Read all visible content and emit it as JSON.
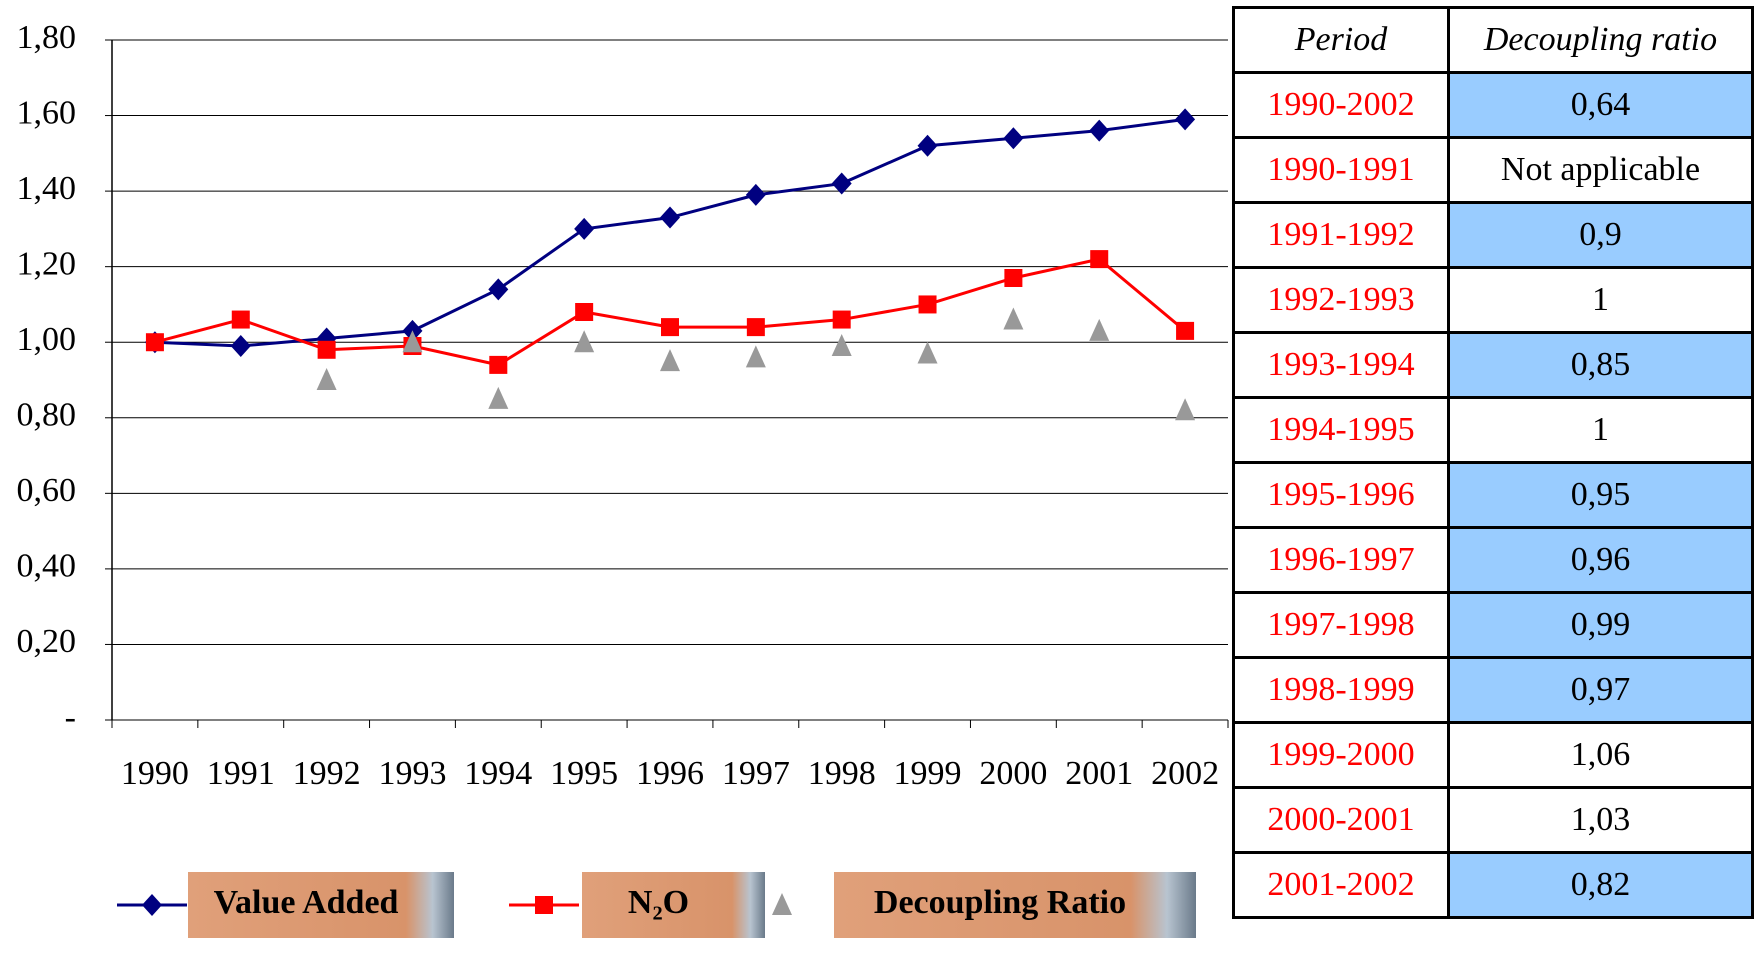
{
  "chart_data": {
    "type": "line",
    "categories": [
      "1990",
      "1991",
      "1992",
      "1993",
      "1994",
      "1995",
      "1996",
      "1997",
      "1998",
      "1999",
      "2000",
      "2001",
      "2002"
    ],
    "series": [
      {
        "name": "Value Added",
        "color": "#000080",
        "marker": "diamond",
        "values": [
          1.0,
          0.99,
          1.01,
          1.03,
          1.14,
          1.3,
          1.33,
          1.39,
          1.42,
          1.52,
          1.54,
          1.56,
          1.59
        ]
      },
      {
        "name": "N₂O",
        "color": "#ff0000",
        "marker": "square",
        "values": [
          1.0,
          1.06,
          0.98,
          0.99,
          0.94,
          1.08,
          1.04,
          1.04,
          1.06,
          1.1,
          1.17,
          1.22,
          1.03
        ]
      },
      {
        "name": "Decoupling Ratio",
        "color": "#999999",
        "marker": "triangle",
        "line": false,
        "values": [
          null,
          null,
          0.9,
          1.0,
          0.85,
          1.0,
          0.95,
          0.96,
          0.99,
          0.97,
          1.06,
          1.03,
          0.82
        ]
      }
    ],
    "ylim": [
      0,
      1.8
    ],
    "yticks": [
      {
        "value": 0,
        "label": "-"
      },
      {
        "value": 0.2,
        "label": "0,20"
      },
      {
        "value": 0.4,
        "label": "0,40"
      },
      {
        "value": 0.6,
        "label": "0,60"
      },
      {
        "value": 0.8,
        "label": "0,80"
      },
      {
        "value": 1.0,
        "label": "1,00"
      },
      {
        "value": 1.2,
        "label": "1,20"
      },
      {
        "value": 1.4,
        "label": "1,40"
      },
      {
        "value": 1.6,
        "label": "1,60"
      },
      {
        "value": 1.8,
        "label": "1,80"
      }
    ],
    "grid": true,
    "legend": "bottom"
  },
  "table": {
    "header": [
      "Period",
      "Decoupling ratio"
    ],
    "highlight_color": "#99ccff",
    "rows": [
      {
        "period": "1990-2002",
        "ratio": "0,64",
        "highlight": true
      },
      {
        "period": "1990-1991",
        "ratio": "Not applicable",
        "highlight": false
      },
      {
        "period": "1991-1992",
        "ratio": "0,9",
        "highlight": true
      },
      {
        "period": "1992-1993",
        "ratio": "1",
        "highlight": false
      },
      {
        "period": "1993-1994",
        "ratio": "0,85",
        "highlight": true
      },
      {
        "period": "1994-1995",
        "ratio": "1",
        "highlight": false
      },
      {
        "period": "1995-1996",
        "ratio": "0,95",
        "highlight": true
      },
      {
        "period": "1996-1997",
        "ratio": "0,96",
        "highlight": true
      },
      {
        "period": "1997-1998",
        "ratio": "0,99",
        "highlight": true
      },
      {
        "period": "1998-1999",
        "ratio": "0,97",
        "highlight": true
      },
      {
        "period": "1999-2000",
        "ratio": "1,06",
        "highlight": false
      },
      {
        "period": "2000-2001",
        "ratio": "1,03",
        "highlight": false
      },
      {
        "period": "2001-2002",
        "ratio": "0,82",
        "highlight": true
      }
    ]
  }
}
